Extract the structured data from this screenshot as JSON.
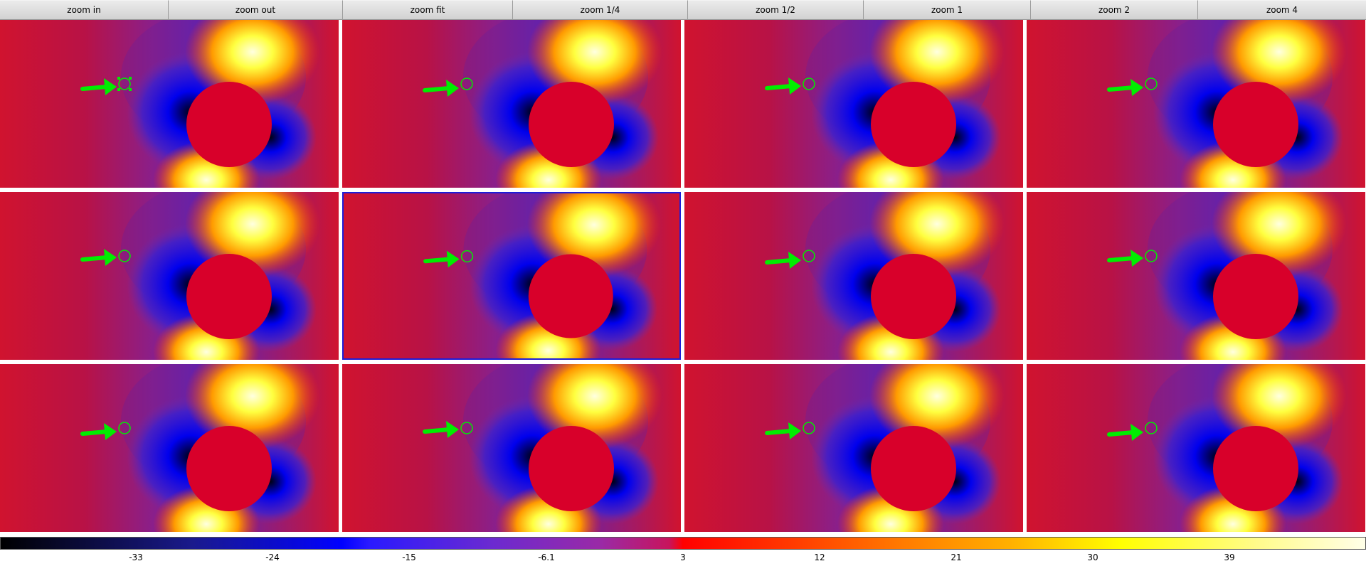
{
  "toolbar": {
    "buttons": [
      "zoom in",
      "zoom out",
      "zoom fit",
      "zoom 1/4",
      "zoom 1/2",
      "zoom 1",
      "zoom 2",
      "zoom 4"
    ]
  },
  "frames": {
    "rows": 3,
    "columns": 4,
    "current_frame": 6,
    "selected_region_frame": 1,
    "region_shape": "circle",
    "annotation": "arrow"
  },
  "colorbar": {
    "colormap": "heat",
    "ticks": [
      "-33",
      "-24",
      "-15",
      "-6.1",
      "3",
      "12",
      "21",
      "30",
      "39"
    ]
  },
  "colors": {
    "region": "#00ee00",
    "current_frame_border": "#1d1dd8",
    "mask_disk": "#d8002a"
  }
}
